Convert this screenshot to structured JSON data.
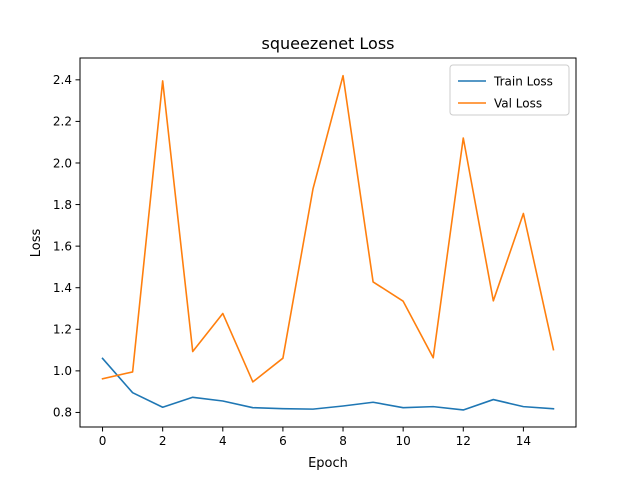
{
  "chart_data": {
    "type": "line",
    "title": "squeezenet Loss",
    "xlabel": "Epoch",
    "ylabel": "Loss",
    "xlim": [
      -0.75,
      15.75
    ],
    "ylim": [
      0.73,
      2.505
    ],
    "x_ticks": [
      0,
      2,
      4,
      6,
      8,
      10,
      12,
      14
    ],
    "y_ticks": [
      0.8,
      1.0,
      1.2,
      1.4,
      1.6,
      1.8,
      2.0,
      2.2,
      2.4
    ],
    "x": [
      0,
      1,
      2,
      3,
      4,
      5,
      6,
      7,
      8,
      9,
      10,
      11,
      12,
      13,
      14,
      15
    ],
    "grid": false,
    "legend_position": "top-right",
    "series": [
      {
        "name": "Train Loss",
        "color": "#1f77b4",
        "values": [
          1.06,
          0.895,
          0.825,
          0.873,
          0.855,
          0.823,
          0.818,
          0.816,
          0.831,
          0.849,
          0.823,
          0.828,
          0.812,
          0.862,
          0.828,
          0.818
        ]
      },
      {
        "name": "Val Loss",
        "color": "#ff7f0e",
        "values": [
          0.962,
          0.995,
          2.395,
          1.093,
          1.276,
          0.947,
          1.061,
          1.875,
          2.42,
          1.428,
          1.335,
          1.063,
          2.12,
          1.337,
          1.757,
          1.102
        ]
      }
    ]
  }
}
